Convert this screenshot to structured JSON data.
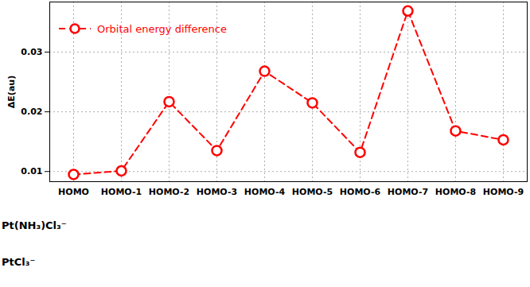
{
  "chart_data": {
    "type": "line",
    "y_label": "ΔE(au)",
    "categories": [
      "HOMO",
      "HOMO-1",
      "HOMO-2",
      "HOMO-3",
      "HOMO-4",
      "HOMO-5",
      "HOMO-6",
      "HOMO-7",
      "HOMO-8",
      "HOMO-9"
    ],
    "series": [
      {
        "name": "Orbital energy difference",
        "color": "#ff0000",
        "marker": "circle",
        "line_style": "dashed",
        "values": [
          0.0095,
          0.0101,
          0.0217,
          0.0135,
          0.0268,
          0.0215,
          0.0132,
          0.0369,
          0.0168,
          0.0153
        ]
      }
    ],
    "ylim": [
      0.0083,
      0.0384
    ],
    "yticks": [
      0.01,
      0.02,
      0.03
    ],
    "grid": true,
    "legend": "top-left",
    "annotations": [
      "Pt(NH₃)Cl₃⁻",
      "PtCl₃⁻"
    ]
  }
}
